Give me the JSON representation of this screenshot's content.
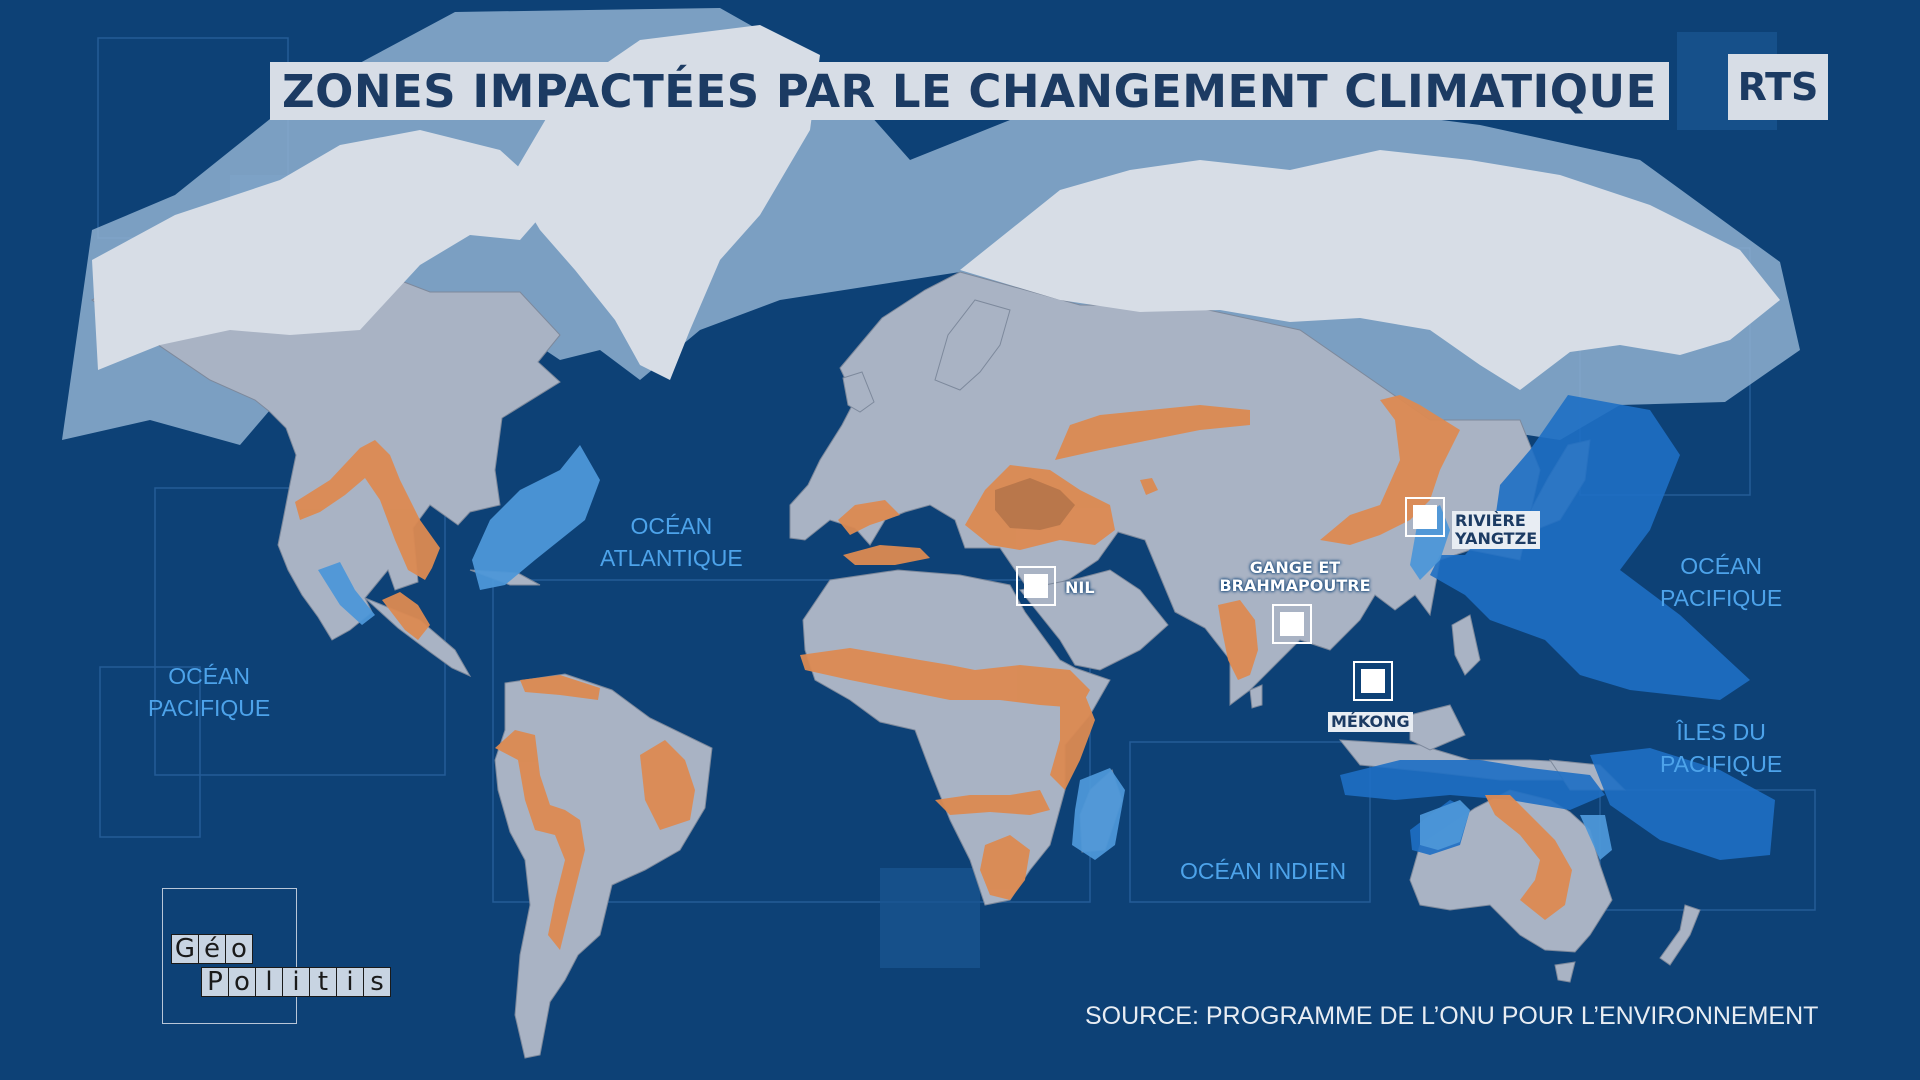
{
  "title": "ZONES IMPACTÉES PAR LE CHANGEMENT CLIMATIQUE",
  "logo": "RTS",
  "oceans": [
    {
      "id": "atlantic",
      "lines": [
        "OCÉAN",
        "ATLANTIQUE"
      ]
    },
    {
      "id": "pacific-east",
      "lines": [
        "OCÉAN",
        "PACIFIQUE"
      ]
    },
    {
      "id": "pacific-west",
      "lines": [
        "OCÉAN",
        "PACIFIQUE"
      ]
    },
    {
      "id": "pacific-islands",
      "lines": [
        "ÎLES DU",
        "PACIFIQUE"
      ]
    },
    {
      "id": "indian",
      "lines": [
        "OCÉAN INDIEN"
      ]
    }
  ],
  "rivers": {
    "nil": "NIL",
    "ganges": [
      "GANGE ET",
      "BRAHMAPOUTRE"
    ],
    "yangtze": [
      "RIVIÈRE",
      "YANGTZE"
    ],
    "mekong": "MÉKONG"
  },
  "source": "SOURCE: PROGRAMME DE L’ONU POUR L’ENVIRONNEMENT",
  "brand": {
    "row1": [
      "G",
      "é",
      "o"
    ],
    "row2": [
      "P",
      "o",
      "l",
      "i",
      "t",
      "i",
      "s"
    ]
  },
  "colors": {
    "ocean": "#0d4176",
    "land": "#a9b3c4",
    "arctic": "#d7dde6",
    "ice_halo": "#8fb0d0",
    "drought_zone": "#dc8a52",
    "coastal_zone": "#1e6fc4",
    "coastal_zone_light": "#4d97d8",
    "text_ocean": "#4da3ea"
  }
}
